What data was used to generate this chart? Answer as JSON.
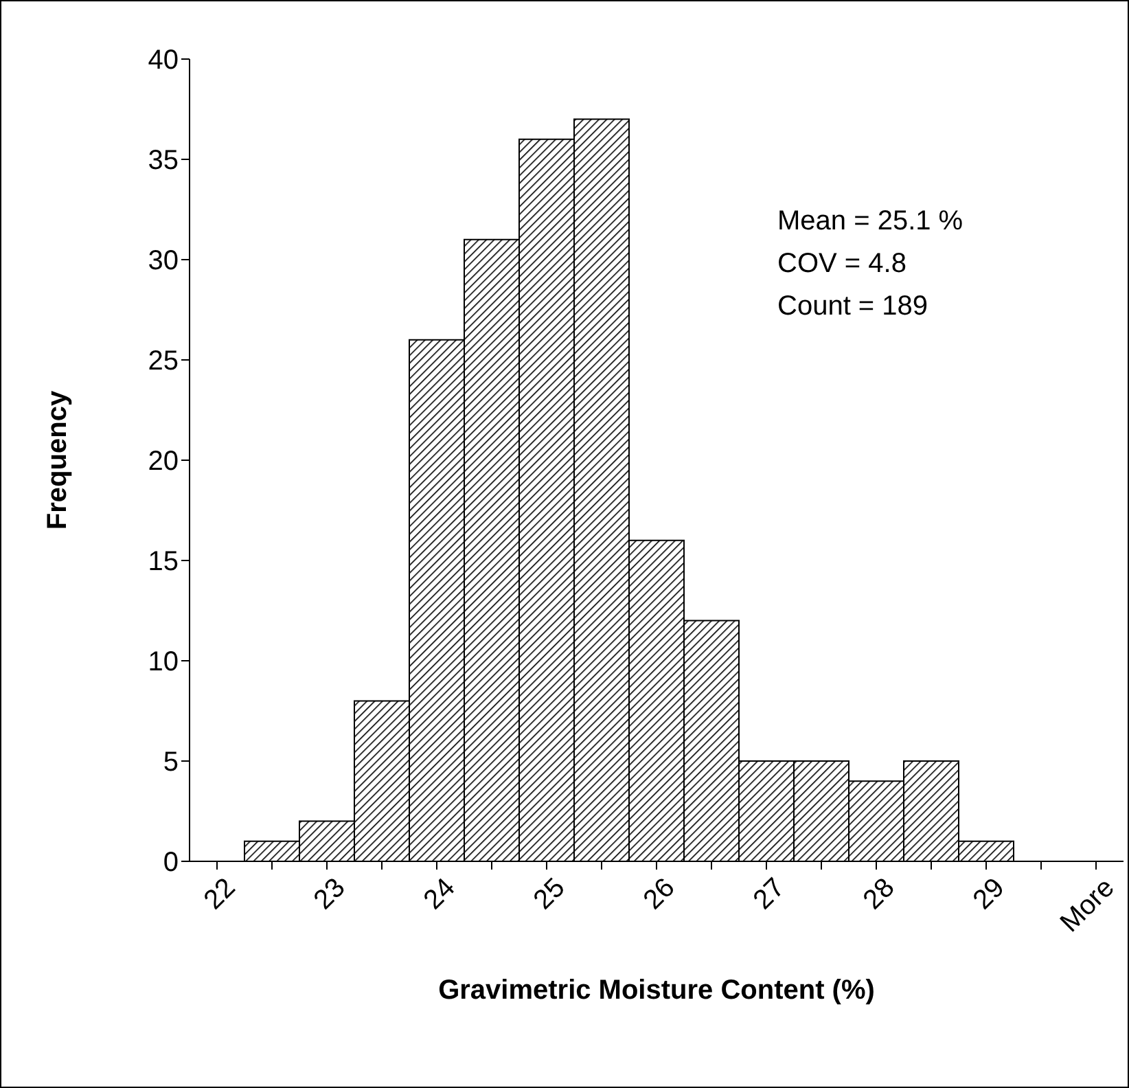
{
  "chart_data": {
    "type": "bar",
    "xlabel": "Gravimetric Moisture Content (%)",
    "ylabel": "Frequency",
    "categories": [
      "22",
      null,
      "23",
      null,
      "24",
      null,
      "25",
      null,
      "26",
      null,
      "27",
      null,
      "28",
      null,
      "29",
      null,
      "More"
    ],
    "values": [
      0,
      1,
      2,
      8,
      26,
      31,
      36,
      37,
      16,
      12,
      5,
      5,
      4,
      5,
      1,
      0,
      0
    ],
    "color": "#000000",
    "ylim": [
      0,
      40
    ],
    "yticks": [
      0,
      5,
      10,
      15,
      20,
      25,
      30,
      35,
      40
    ],
    "grid": false,
    "legend": false,
    "annotations": [
      "Mean = 25.1 %",
      "COV = 4.8",
      "Count = 189"
    ]
  }
}
